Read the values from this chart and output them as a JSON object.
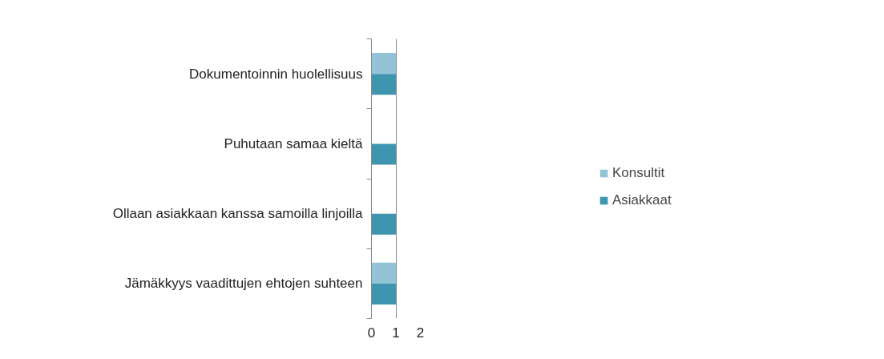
{
  "chart_data": {
    "type": "bar",
    "orientation": "horizontal",
    "categories": [
      "Dokumentoinnin huolellisuus",
      "Puhutaan samaa kieltä",
      "Ollaan asiakkaan kanssa samoilla linjoilla",
      "Jämäkkyys vaadittujen ehtojen suhteen"
    ],
    "series": [
      {
        "name": "Konsultit",
        "color": "#93c4d5",
        "values": [
          1,
          0,
          0,
          1
        ]
      },
      {
        "name": "Asiakkaat",
        "color": "#3f95ad",
        "values": [
          1,
          1,
          1,
          1
        ]
      }
    ],
    "xlim": [
      0,
      2
    ],
    "xticks": [
      0,
      1,
      2
    ],
    "grid": "x",
    "legend": "right"
  }
}
